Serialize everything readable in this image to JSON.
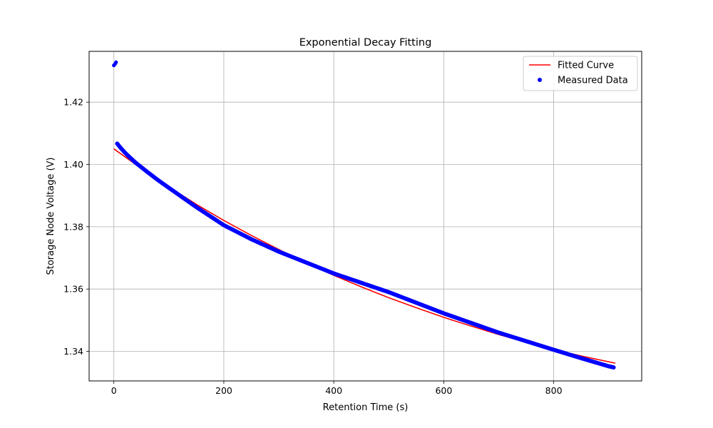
{
  "chart_data": {
    "type": "scatter",
    "title": "Exponential Decay Fitting",
    "xlabel": "Retention Time (s)",
    "ylabel": "Storage Node Voltage (V)",
    "xlim": [
      -45,
      960
    ],
    "ylim": [
      1.3305,
      1.4363
    ],
    "x_ticks": [
      0,
      200,
      400,
      600,
      800
    ],
    "y_ticks": [
      1.34,
      1.36,
      1.38,
      1.4,
      1.42
    ],
    "x_tick_labels": [
      "0",
      "200",
      "400",
      "600",
      "800"
    ],
    "y_tick_labels": [
      "1.34",
      "1.36",
      "1.38",
      "1.40",
      "1.42"
    ],
    "grid": true,
    "legend_position": "top-right",
    "legend": [
      "Fitted Curve",
      "Measured Data"
    ],
    "colors": {
      "fitted": "#ff0000",
      "measured": "#0000ff",
      "grid": "#b0b0b0"
    },
    "series": [
      {
        "name": "Measured Data",
        "kind": "scatter",
        "color": "#0000ff",
        "x": [
          0,
          2,
          4,
          6,
          8,
          10,
          15,
          20,
          30,
          40,
          60,
          80,
          100,
          150,
          200,
          250,
          300,
          400,
          500,
          600,
          700,
          800,
          850,
          900,
          910
        ],
        "y": [
          1.4318,
          1.4322,
          1.4328,
          1.4067,
          1.4063,
          1.4058,
          1.4048,
          1.4038,
          1.4021,
          1.4005,
          1.3977,
          1.395,
          1.3925,
          1.3863,
          1.3805,
          1.376,
          1.372,
          1.365,
          1.359,
          1.3522,
          1.346,
          1.3405,
          1.3378,
          1.3352,
          1.3348
        ]
      },
      {
        "name": "Fitted Curve",
        "kind": "line",
        "color": "#ff0000",
        "x": [
          0,
          50,
          100,
          150,
          200,
          250,
          300,
          350,
          400,
          450,
          500,
          550,
          600,
          650,
          700,
          750,
          800,
          850,
          912
        ],
        "y": [
          1.405,
          1.3987,
          1.3928,
          1.3872,
          1.382,
          1.3772,
          1.3727,
          1.3684,
          1.3644,
          1.3607,
          1.3572,
          1.354,
          1.3509,
          1.3481,
          1.3454,
          1.3429,
          1.3406,
          1.3385,
          1.3362
        ]
      }
    ]
  }
}
